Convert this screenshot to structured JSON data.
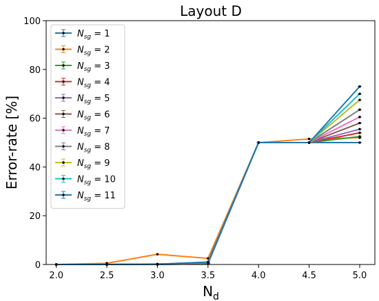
{
  "chart_data": {
    "type": "line",
    "title": "Layout D",
    "xlabel_main": "N",
    "xlabel_sub": "d",
    "ylabel": "Error-rate [%]",
    "x": [
      2.0,
      2.5,
      3.0,
      3.5,
      4.0,
      4.5,
      5.0
    ],
    "x_tick_labels": [
      "2.0",
      "2.5",
      "3.0",
      "3.5",
      "4.0",
      "4.5",
      "5.0"
    ],
    "xlim": [
      1.9,
      5.15
    ],
    "ylim": [
      0,
      100
    ],
    "y_ticks": [
      0,
      20,
      40,
      60,
      80,
      100
    ],
    "y_tick_labels": [
      "0",
      "20",
      "40",
      "60",
      "80",
      "100"
    ],
    "grid": false,
    "legend_position": "top-left",
    "legend_label_prefix": "N",
    "legend_label_sub": "sg",
    "legend_label_eq": " = ",
    "series": [
      {
        "name": "1",
        "color": "#1f77b4",
        "values": [
          0,
          0,
          0,
          0.3,
          50,
          50,
          50
        ]
      },
      {
        "name": "2",
        "color": "#ff7f0e",
        "values": [
          0,
          0.5,
          4.2,
          2.5,
          50,
          51.5,
          52
        ]
      },
      {
        "name": "3",
        "color": "#2ca02c",
        "values": [
          0,
          0,
          0.2,
          0.5,
          50,
          50,
          52.5
        ]
      },
      {
        "name": "4",
        "color": "#d62728",
        "values": [
          0,
          0,
          0.1,
          0.6,
          50,
          50,
          54
        ]
      },
      {
        "name": "5",
        "color": "#9467bd",
        "values": [
          0,
          0,
          0.1,
          0.7,
          50,
          50,
          55.5
        ]
      },
      {
        "name": "6",
        "color": "#8c564b",
        "values": [
          0,
          0,
          0.1,
          0.8,
          50,
          50,
          58
        ]
      },
      {
        "name": "7",
        "color": "#e377c2",
        "values": [
          0,
          0,
          0.1,
          0.8,
          50,
          50,
          60.5
        ]
      },
      {
        "name": "8",
        "color": "#7f7f7f",
        "values": [
          0,
          0,
          0.1,
          0.9,
          50,
          50,
          63.5
        ]
      },
      {
        "name": "9",
        "color": "#bcbd22",
        "values": [
          0,
          0,
          0.1,
          0.9,
          50,
          50,
          67.5
        ]
      },
      {
        "name": "10",
        "color": "#17becf",
        "values": [
          0,
          0,
          0.1,
          1.0,
          50,
          50,
          70
        ]
      },
      {
        "name": "11",
        "color": "#1f77b4",
        "values": [
          0,
          0,
          0.1,
          1.0,
          50,
          50,
          73
        ]
      }
    ]
  }
}
